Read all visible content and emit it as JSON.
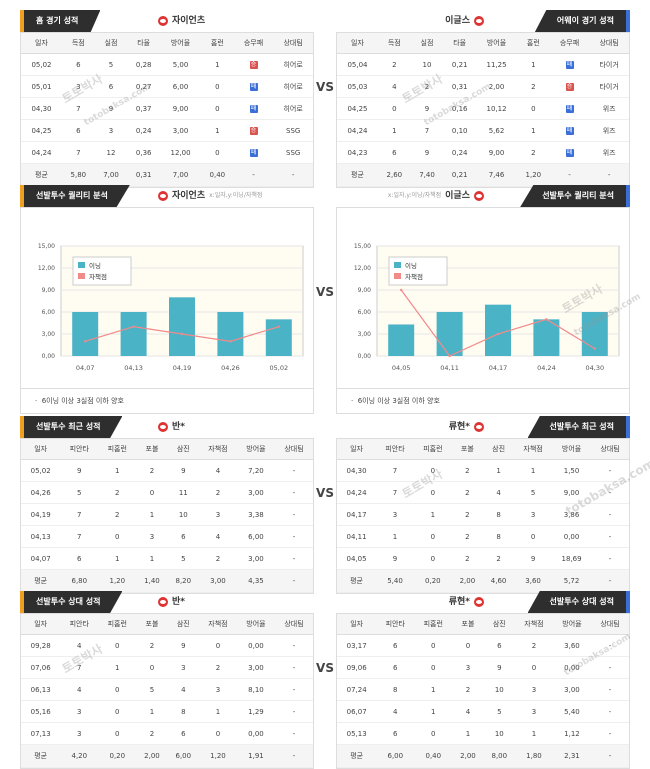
{
  "vs": "VS",
  "colors": {
    "dark": "#2e2e2e",
    "home_accent": "#f0a020",
    "away_accent": "#3a6fd8",
    "bar": "#4bb3c6",
    "line": "#f28a8a",
    "win": "#d9534f",
    "loss": "#3a6fd8"
  },
  "watermark": [
    "토토박사",
    "totobaksa.com"
  ],
  "section1": {
    "left": {
      "title": "홈 경기 성적",
      "team": "자이언츠",
      "headers": [
        "일자",
        "득점",
        "실점",
        "타율",
        "방어율",
        "홈런",
        "승무패",
        "상대팀"
      ],
      "rows": [
        [
          "05,02",
          "6",
          "5",
          "0,28",
          "5,00",
          "1",
          "승",
          "히어로"
        ],
        [
          "05,01",
          "3",
          "6",
          "0,27",
          "6,00",
          "0",
          "패",
          "히어로"
        ],
        [
          "04,30",
          "7",
          "9",
          "0,37",
          "9,00",
          "0",
          "패",
          "히어로"
        ],
        [
          "04,25",
          "6",
          "3",
          "0,24",
          "3,00",
          "1",
          "승",
          "SSG"
        ],
        [
          "04,24",
          "7",
          "12",
          "0,36",
          "12,00",
          "0",
          "패",
          "SSG"
        ]
      ],
      "avg": [
        "평균",
        "5,80",
        "7,00",
        "0,31",
        "7,00",
        "0,40",
        "-",
        "-"
      ]
    },
    "right": {
      "title": "어웨이 경기 성적",
      "team": "이글스",
      "headers": [
        "일자",
        "득점",
        "실점",
        "타율",
        "방어율",
        "홈런",
        "승무패",
        "상대팀"
      ],
      "rows": [
        [
          "05,04",
          "2",
          "10",
          "0,21",
          "11,25",
          "1",
          "패",
          "타이거"
        ],
        [
          "05,03",
          "4",
          "2",
          "0,31",
          "2,00",
          "2",
          "승",
          "타이거"
        ],
        [
          "04,25",
          "0",
          "9",
          "0,16",
          "10,12",
          "0",
          "패",
          "위즈"
        ],
        [
          "04,24",
          "1",
          "7",
          "0,10",
          "5,62",
          "1",
          "패",
          "위즈"
        ],
        [
          "04,23",
          "6",
          "9",
          "0,24",
          "9,00",
          "2",
          "패",
          "위즈"
        ]
      ],
      "avg": [
        "평균",
        "2,60",
        "7,40",
        "0,21",
        "7,46",
        "1,20",
        "-",
        "-"
      ]
    }
  },
  "section2": {
    "left": {
      "title": "선발투수 퀄리티 분석",
      "team": "자이언츠",
      "hint": "x:일자,y:이닝/자책점",
      "note": "6이닝 이상 3실점 이하 양호"
    },
    "right": {
      "title": "선발투수 퀄리티 분석",
      "team": "이글스",
      "hint": "x:일자,y:이닝/자책점",
      "note": "6이닝 이상 3실점 이하 양호"
    }
  },
  "chart_data": [
    {
      "type": "bar",
      "title": "",
      "categories": [
        "04,07",
        "04,13",
        "04,19",
        "04,26",
        "05,02"
      ],
      "series": [
        {
          "name": "이닝",
          "values": [
            6,
            6,
            8,
            6,
            5
          ]
        },
        {
          "name": "자책점",
          "values": [
            2,
            4,
            3,
            2,
            4
          ]
        }
      ],
      "yticks": [
        "0,00",
        "3,00",
        "6,00",
        "9,00",
        "12,00",
        "15,00"
      ],
      "ylim": [
        0,
        15
      ],
      "legend": "top-left",
      "grid": true
    },
    {
      "type": "bar",
      "title": "",
      "categories": [
        "04,05",
        "04,11",
        "04,17",
        "04,24",
        "04,30"
      ],
      "series": [
        {
          "name": "이닝",
          "values": [
            4.3,
            6,
            7,
            5,
            6
          ]
        },
        {
          "name": "자책점",
          "values": [
            9,
            0,
            3,
            5,
            1
          ]
        }
      ],
      "yticks": [
        "0,00",
        "3,00",
        "6,00",
        "9,00",
        "12,00",
        "15,00"
      ],
      "ylim": [
        0,
        15
      ],
      "legend": "top-left",
      "grid": true
    }
  ],
  "section3": {
    "left": {
      "title": "선발투수 최근 성적",
      "team": "반*",
      "headers": [
        "일자",
        "피안타",
        "피홈런",
        "포볼",
        "삼진",
        "자책점",
        "방어율",
        "상대팀"
      ],
      "rows": [
        [
          "05,02",
          "9",
          "1",
          "2",
          "9",
          "4",
          "7,20",
          "-"
        ],
        [
          "04,26",
          "5",
          "2",
          "0",
          "11",
          "2",
          "3,00",
          "-"
        ],
        [
          "04,19",
          "7",
          "2",
          "1",
          "10",
          "3",
          "3,38",
          "-"
        ],
        [
          "04,13",
          "7",
          "0",
          "3",
          "6",
          "4",
          "6,00",
          "-"
        ],
        [
          "04,07",
          "6",
          "1",
          "1",
          "5",
          "2",
          "3,00",
          "-"
        ]
      ],
      "avg": [
        "평균",
        "6,80",
        "1,20",
        "1,40",
        "8,20",
        "3,00",
        "4,35",
        "-"
      ]
    },
    "right": {
      "title": "선발투수 최근 성적",
      "team": "류현*",
      "headers": [
        "일자",
        "피안타",
        "피홈런",
        "포볼",
        "삼진",
        "자책점",
        "방어율",
        "상대팀"
      ],
      "rows": [
        [
          "04,30",
          "7",
          "0",
          "2",
          "1",
          "1",
          "1,50",
          "-"
        ],
        [
          "04,24",
          "7",
          "0",
          "2",
          "4",
          "5",
          "9,00",
          "-"
        ],
        [
          "04,17",
          "3",
          "1",
          "2",
          "8",
          "3",
          "3,86",
          "-"
        ],
        [
          "04,11",
          "1",
          "0",
          "2",
          "8",
          "0",
          "0,00",
          "-"
        ],
        [
          "04,05",
          "9",
          "0",
          "2",
          "2",
          "9",
          "18,69",
          "-"
        ]
      ],
      "avg": [
        "평균",
        "5,40",
        "0,20",
        "2,00",
        "4,60",
        "3,60",
        "5,72",
        "-"
      ]
    }
  },
  "section4": {
    "left": {
      "title": "선발투수 상대 성적",
      "team": "반*",
      "headers": [
        "일자",
        "피안타",
        "피홈런",
        "포볼",
        "삼진",
        "자책점",
        "방어율",
        "상대팀"
      ],
      "rows": [
        [
          "09,28",
          "4",
          "0",
          "2",
          "9",
          "0",
          "0,00",
          "-"
        ],
        [
          "07,06",
          "7",
          "1",
          "0",
          "3",
          "2",
          "3,00",
          "-"
        ],
        [
          "06,13",
          "4",
          "0",
          "5",
          "4",
          "3",
          "8,10",
          "-"
        ],
        [
          "05,16",
          "3",
          "0",
          "1",
          "8",
          "1",
          "1,29",
          "-"
        ],
        [
          "07,13",
          "3",
          "0",
          "2",
          "6",
          "0",
          "0,00",
          "-"
        ]
      ],
      "avg": [
        "평균",
        "4,20",
        "0,20",
        "2,00",
        "6,00",
        "1,20",
        "1,91",
        "-"
      ]
    },
    "right": {
      "title": "선발투수 상대 성적",
      "team": "류현*",
      "headers": [
        "일자",
        "피안타",
        "피홈런",
        "포볼",
        "삼진",
        "자책점",
        "방어율",
        "상대팀"
      ],
      "rows": [
        [
          "03,17",
          "6",
          "0",
          "0",
          "6",
          "2",
          "3,60",
          "-"
        ],
        [
          "09,06",
          "6",
          "0",
          "3",
          "9",
          "0",
          "0,00",
          "-"
        ],
        [
          "07,24",
          "8",
          "1",
          "2",
          "10",
          "3",
          "3,00",
          "-"
        ],
        [
          "06,07",
          "4",
          "1",
          "4",
          "5",
          "3",
          "5,40",
          "-"
        ],
        [
          "05,13",
          "6",
          "0",
          "1",
          "10",
          "1",
          "1,12",
          "-"
        ]
      ],
      "avg": [
        "평균",
        "6,00",
        "0,40",
        "2,00",
        "8,00",
        "1,80",
        "2,31",
        "-"
      ]
    }
  }
}
